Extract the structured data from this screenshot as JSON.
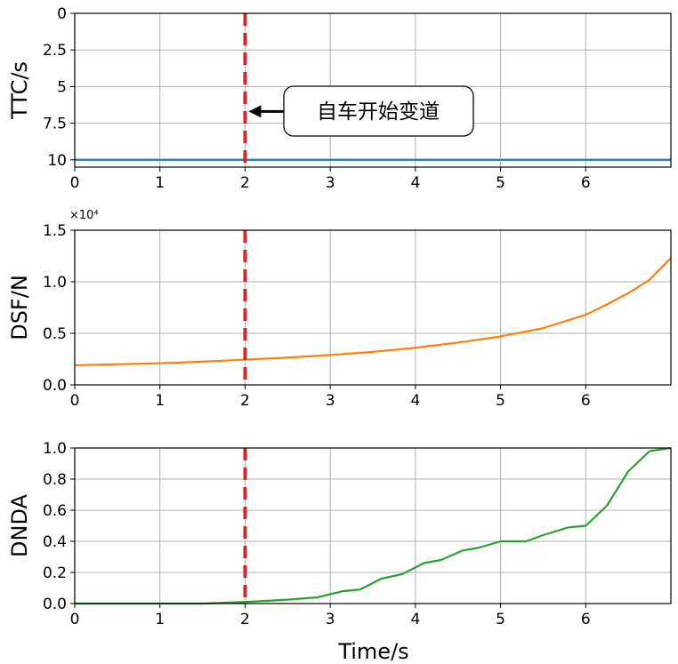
{
  "annotation": {
    "text": "自车开始变道",
    "arrow_x": 2,
    "arrow_y": 6.7
  },
  "marker": {
    "x": 2,
    "color": "#d62728",
    "style": "dashed"
  },
  "xlabel": "Time/s",
  "chart_data": [
    {
      "type": "line",
      "ylabel": "TTC/s",
      "xlim": [
        0,
        7
      ],
      "ylim": [
        10.5,
        0
      ],
      "inverted_y": true,
      "xticks": [
        "0",
        "1",
        "2",
        "3",
        "4",
        "5",
        "6"
      ],
      "yticks": [
        "0",
        "2.5",
        "5",
        "7.5",
        "10"
      ],
      "grid": true,
      "series": [
        {
          "color": "#1f77b4",
          "x": [
            0,
            7
          ],
          "y": [
            10,
            10
          ]
        }
      ]
    },
    {
      "type": "line",
      "ylabel": "DSF/N",
      "offset_label": "×10⁴",
      "xlim": [
        0,
        7
      ],
      "ylim": [
        0,
        1.5
      ],
      "xticks": [
        "0",
        "1",
        "2",
        "3",
        "4",
        "5",
        "6"
      ],
      "yticks": [
        "0.0",
        "0.5",
        "1.0",
        "1.5"
      ],
      "grid": true,
      "series": [
        {
          "color": "#ff7f0e",
          "x": [
            0,
            0.5,
            1,
            1.5,
            2,
            2.5,
            3,
            3.5,
            4,
            4.5,
            5,
            5.5,
            6,
            6.25,
            6.5,
            6.75,
            7
          ],
          "y": [
            0.19,
            0.2,
            0.21,
            0.225,
            0.245,
            0.265,
            0.29,
            0.32,
            0.36,
            0.41,
            0.47,
            0.55,
            0.68,
            0.78,
            0.89,
            1.02,
            1.23
          ]
        }
      ]
    },
    {
      "type": "line",
      "ylabel": "DNDA",
      "xlim": [
        0,
        7
      ],
      "ylim": [
        0,
        1.0
      ],
      "xticks": [
        "0",
        "1",
        "2",
        "3",
        "4",
        "5",
        "6"
      ],
      "yticks": [
        "0.0",
        "0.2",
        "0.4",
        "0.6",
        "0.8",
        "1.0"
      ],
      "grid": true,
      "series": [
        {
          "color": "#2ca02c",
          "x": [
            0,
            1.5,
            2,
            2.5,
            2.85,
            3.15,
            3.35,
            3.6,
            3.85,
            4.1,
            4.3,
            4.55,
            4.75,
            5.0,
            5.3,
            5.5,
            5.8,
            6.0,
            6.25,
            6.5,
            6.75,
            7.0
          ],
          "y": [
            0,
            0,
            0.01,
            0.025,
            0.04,
            0.08,
            0.09,
            0.16,
            0.19,
            0.26,
            0.28,
            0.34,
            0.36,
            0.4,
            0.4,
            0.44,
            0.49,
            0.5,
            0.63,
            0.85,
            0.98,
            1.0
          ]
        }
      ]
    }
  ]
}
